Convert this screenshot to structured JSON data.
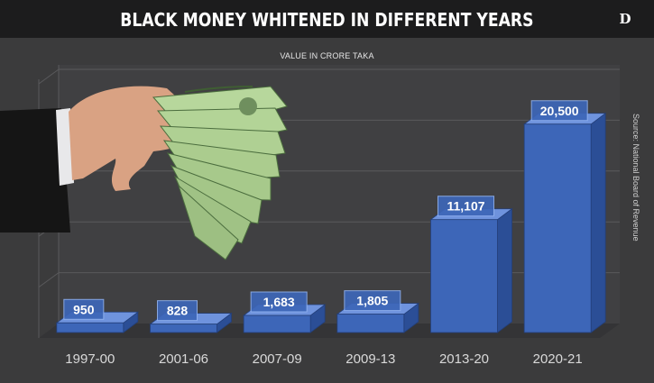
{
  "title": "BLACK MONEY WHITENED IN DIFFERENT YEARS",
  "logo_text": "D",
  "subtitle": "VALUE IN CRORE TAKA",
  "source": "Source: National Board of Revenue",
  "colors": {
    "background": "#3b3b3c",
    "title_bar": "#1c1c1d",
    "bar_front": "#3d66b8",
    "bar_side": "#2b4e96",
    "bar_top": "#6f93dd",
    "grid": "#5a5a5c"
  },
  "chart_data": {
    "type": "bar",
    "title": "BLACK MONEY WHITENED IN DIFFERENT YEARS",
    "subtitle": "VALUE IN CRORE TAKA",
    "categories": [
      "1997-00",
      "2001-06",
      "2007-09",
      "2009-13",
      "2013-20",
      "2020-21"
    ],
    "values": [
      950,
      828,
      1683,
      1805,
      11107,
      20500
    ],
    "data_labels": [
      "950",
      "828",
      "1,683",
      "1,805",
      "11,107",
      "20,500"
    ],
    "ylim": [
      0,
      25000
    ],
    "grid": true,
    "style": "3d-bar"
  }
}
